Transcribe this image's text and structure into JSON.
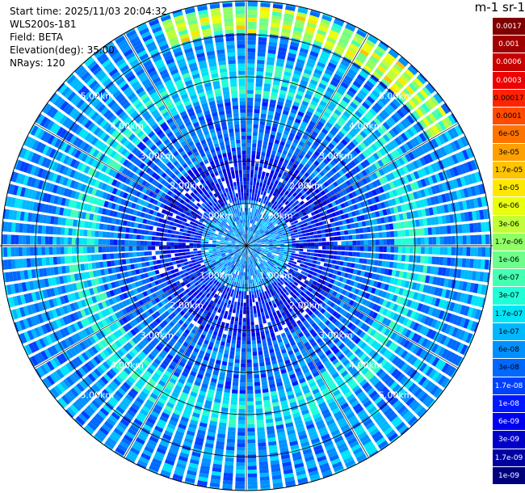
{
  "header": {
    "start_time": "Start time: 2025/11/03 20:04:32",
    "instrument": "WLS200s-181",
    "field": "Field: BETA",
    "elevation": "Elevation(deg): 35.00",
    "nrays": "NRays: 120"
  },
  "colorbar": {
    "unit_label": "m-1 sr-1",
    "levels": [
      "0.0017",
      "0.001",
      "0.0006",
      "0.0003",
      "0.00017",
      "0.0001",
      "6e-05",
      "3e-05",
      "1.7e-05",
      "1e-05",
      "6e-06",
      "3e-06",
      "1.7e-06",
      "1e-06",
      "6e-07",
      "3e-07",
      "1.7e-07",
      "1e-07",
      "6e-08",
      "3e-08",
      "1.7e-08",
      "1e-08",
      "6e-09",
      "3e-09",
      "1.7e-09",
      "1e-09"
    ],
    "colors": [
      "#7f0000",
      "#a10000",
      "#c80000",
      "#ee0000",
      "#ff2400",
      "#ff4c00",
      "#ff7400",
      "#ffa000",
      "#ffc400",
      "#ffe800",
      "#e8ff0e",
      "#c0ff37",
      "#90ff66",
      "#6dff8a",
      "#45ffb2",
      "#20ffd7",
      "#00e4f8",
      "#00b8ff",
      "#0090ff",
      "#0068ff",
      "#0040ff",
      "#0018ff",
      "#0000f1",
      "#0000c8",
      "#0000a1",
      "#00007f"
    ]
  },
  "chart_data": {
    "type": "heatmap",
    "projection": "polar (PPI)",
    "field": "BETA",
    "elevation_deg": 35.0,
    "n_rays": 120,
    "range_rings_km": [
      1.0,
      2.0,
      3.0,
      4.0,
      5.0
    ],
    "ring_labels": [
      "1.00km",
      "2.00km",
      "3.00km",
      "4.00km",
      "5.00km"
    ],
    "max_range_km": 5.8,
    "scale": "log",
    "value_range": [
      1e-09,
      0.0017
    ],
    "features": [
      {
        "description": "near-field mostly light blue",
        "range_km": [
          0,
          1.0
        ],
        "level": "1e-07"
      },
      {
        "description": "darker blue ring",
        "range_km": [
          1.0,
          2.2
        ],
        "level": "6e-09"
      },
      {
        "description": "cyan band",
        "range_km": [
          3.5,
          4.3
        ],
        "level": "1.7e-07"
      },
      {
        "description": "yellow-green arc to north and north-east",
        "azimuth_deg": [
          -20,
          60
        ],
        "range_km": [
          5.0,
          5.6
        ],
        "level": "6e-06"
      }
    ]
  }
}
